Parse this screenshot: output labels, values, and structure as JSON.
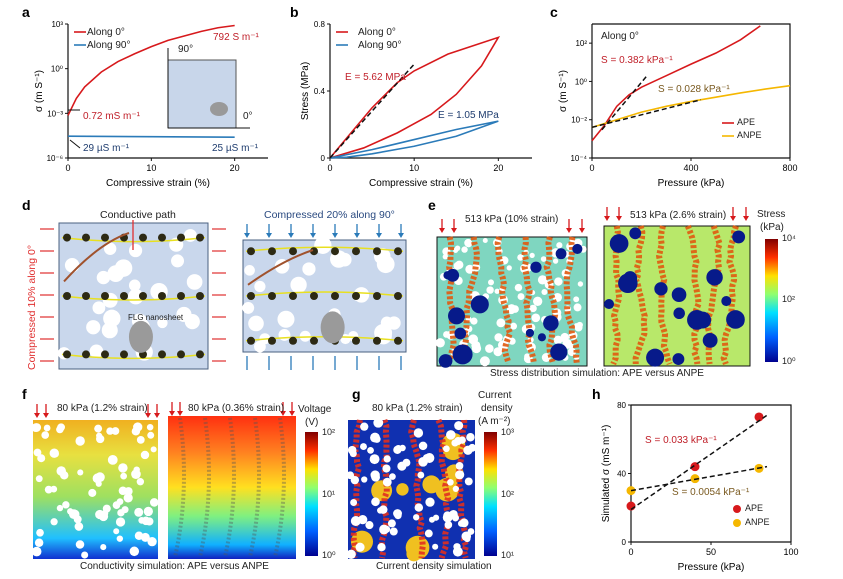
{
  "panel_labels": {
    "a": "a",
    "b": "b",
    "c": "c",
    "d": "d",
    "e": "e",
    "f": "f",
    "g": "g",
    "h": "h"
  },
  "colors": {
    "red": "#d7191c",
    "blue": "#2b7bb9",
    "yellow": "#f5b700",
    "black": "#111111"
  },
  "chart_data": [
    {
      "id": "a",
      "type": "line",
      "xlabel": "Compressive strain (%)",
      "ylabel": "σ (m S⁻¹)",
      "xlim": [
        0,
        24
      ],
      "ylim_log10": [
        -6,
        3
      ],
      "yscale": "log",
      "xticks": [
        "0",
        "10",
        "20"
      ],
      "xtick_values": [
        0,
        10,
        20
      ],
      "yticks": [
        "10⁻⁶",
        "10⁻³",
        "10⁰",
        "10³"
      ],
      "ytick_values": [
        -6,
        -3,
        0,
        3
      ],
      "series": [
        {
          "name": "Along 0°",
          "color": "#d7191c",
          "points": [
            [
              0,
              0.00072
            ],
            [
              1,
              0.01
            ],
            [
              2,
              0.06
            ],
            [
              4,
              0.6
            ],
            [
              6,
              3
            ],
            [
              8,
              10
            ],
            [
              10,
              30
            ],
            [
              12,
              80
            ],
            [
              14,
              160
            ],
            [
              16,
              320
            ],
            [
              18,
              560
            ],
            [
              20,
              792
            ]
          ]
        },
        {
          "name": "Along 90°",
          "color": "#2b7bb9",
          "points": [
            [
              0,
              2.9e-05
            ],
            [
              10,
              2.7e-05
            ],
            [
              20,
              2.5e-05
            ]
          ]
        }
      ],
      "annotations": [
        "792 S m⁻¹",
        "0.72 mS m⁻¹",
        "29 µS m⁻¹",
        "25 µS m⁻¹"
      ],
      "inset": {
        "y_axis": "90°",
        "x_axis": "0°"
      }
    },
    {
      "id": "b",
      "type": "line",
      "xlabel": "Compressive strain (%)",
      "ylabel": "Stress (MPa)",
      "xlim": [
        0,
        24
      ],
      "ylim": [
        0,
        0.8
      ],
      "xticks": [
        "0",
        "10",
        "20"
      ],
      "xtick_values": [
        0,
        10,
        20
      ],
      "yticks": [
        "0",
        "0.4",
        "0.8"
      ],
      "ytick_values": [
        0,
        0.4,
        0.8
      ],
      "series": [
        {
          "name": "Along 0°",
          "color": "#d7191c",
          "points": [
            [
              0,
              0
            ],
            [
              2,
              0.12
            ],
            [
              5,
              0.3
            ],
            [
              8,
              0.45
            ],
            [
              10,
              0.52
            ],
            [
              14,
              0.62
            ],
            [
              17,
              0.67
            ],
            [
              20,
              0.72
            ],
            [
              18,
              0.55
            ],
            [
              15,
              0.38
            ],
            [
              12,
              0.26
            ],
            [
              8,
              0.15
            ],
            [
              4,
              0.06
            ],
            [
              0,
              0
            ]
          ]
        },
        {
          "name": "Along 90°",
          "color": "#2b7bb9",
          "points": [
            [
              0,
              0
            ],
            [
              5,
              0.05
            ],
            [
              10,
              0.11
            ],
            [
              15,
              0.17
            ],
            [
              20,
              0.22
            ],
            [
              15,
              0.13
            ],
            [
              10,
              0.07
            ],
            [
              5,
              0.025
            ],
            [
              2,
              0.005
            ],
            [
              0,
              0
            ]
          ]
        }
      ],
      "fits": [
        [
          [
            0,
            0
          ],
          [
            10,
            0.56
          ]
        ]
      ],
      "annotations": [
        "E = 5.62 MPa",
        "E = 1.05 MPa"
      ]
    },
    {
      "id": "c",
      "type": "line",
      "xlabel": "Pressure (kPa)",
      "ylabel": "σ (m S⁻¹)",
      "xlim": [
        0,
        800
      ],
      "ylim_log10": [
        -4,
        3
      ],
      "yscale": "log",
      "xticks": [
        "0",
        "400",
        "800"
      ],
      "xtick_values": [
        0,
        400,
        800
      ],
      "yticks": [
        "10⁻⁴",
        "10⁻²",
        "10⁰",
        "10²"
      ],
      "ytick_values": [
        -4,
        -2,
        0,
        2
      ],
      "title": "Along 0°",
      "series": [
        {
          "name": "APE",
          "color": "#d7191c",
          "points": [
            [
              0,
              0.0008
            ],
            [
              50,
              0.005
            ],
            [
              100,
              0.05
            ],
            [
              150,
              0.2
            ],
            [
              200,
              0.5
            ],
            [
              300,
              2
            ],
            [
              400,
              8
            ],
            [
              500,
              30
            ],
            [
              600,
              150
            ],
            [
              680,
              800
            ]
          ]
        },
        {
          "name": "ANPE",
          "color": "#f5b700",
          "points": [
            [
              0,
              0.004
            ],
            [
              100,
              0.01
            ],
            [
              200,
              0.025
            ],
            [
              300,
              0.05
            ],
            [
              400,
              0.09
            ],
            [
              500,
              0.15
            ],
            [
              600,
              0.25
            ],
            [
              700,
              0.4
            ],
            [
              800,
              0.6
            ]
          ]
        }
      ],
      "fits": [
        [
          [
            40,
            0.003
          ],
          [
            225,
            2.2
          ]
        ],
        [
          [
            0,
            0.004
          ],
          [
            440,
            0.11
          ]
        ]
      ],
      "annotations": [
        "S = 0.382 kPa⁻¹",
        "S = 0.028 kPa⁻¹"
      ]
    },
    {
      "id": "h",
      "type": "scatter",
      "xlabel": "Pressure (kPa)",
      "ylabel": "Simulated σ (mS m⁻¹)",
      "xlim": [
        0,
        100
      ],
      "ylim": [
        0,
        80
      ],
      "xticks": [
        "0",
        "50",
        "100"
      ],
      "xtick_values": [
        0,
        50,
        100
      ],
      "yticks": [
        "0",
        "40",
        "80"
      ],
      "ytick_values": [
        0,
        40,
        80
      ],
      "series": [
        {
          "name": "APE",
          "color": "#d7191c",
          "points": [
            [
              0,
              21
            ],
            [
              40,
              44
            ],
            [
              80,
              73
            ]
          ]
        },
        {
          "name": "ANPE",
          "color": "#f5b700",
          "points": [
            [
              0,
              30
            ],
            [
              40,
              37
            ],
            [
              80,
              43
            ]
          ]
        }
      ],
      "fits": [
        [
          [
            0,
            19
          ],
          [
            85,
            74
          ]
        ],
        [
          [
            0,
            30
          ],
          [
            85,
            44
          ]
        ]
      ],
      "annotations": [
        "S = 0.033 kPa⁻¹",
        "S = 0.0054 kPa⁻¹"
      ]
    }
  ],
  "d": {
    "left_title": "Conductive path",
    "side_label": "Compressed 10% along 0°",
    "flg": "FLG nanosheet",
    "right_title": "Compressed 20% along 90°"
  },
  "e": {
    "left_title": "513 kPa (10% strain)",
    "right_title": "513 kPa (2.6% strain)",
    "caption": "Stress distribution simulation: APE versus ANPE",
    "cbar_title1": "Stress",
    "cbar_title2": "(kPa)",
    "cbar_ticks": [
      "10⁴",
      "10²",
      "10⁰"
    ]
  },
  "f": {
    "left_title": "80 kPa (1.2% strain)",
    "right_title": "80 kPa (0.36% strain)",
    "caption": "Conductivity simulation: APE versus ANPE",
    "cbar_title1": "Voltage",
    "cbar_title2": "(V)",
    "cbar_ticks": [
      "10²",
      "10¹",
      "10⁰"
    ]
  },
  "g": {
    "title": "80 kPa (1.2% strain)",
    "caption": "Current density simulation",
    "cbar_title1": "Current",
    "cbar_title2": "density",
    "cbar_title3": "(A m⁻²)",
    "cbar_ticks": [
      "10³",
      "10²",
      "10¹"
    ]
  }
}
